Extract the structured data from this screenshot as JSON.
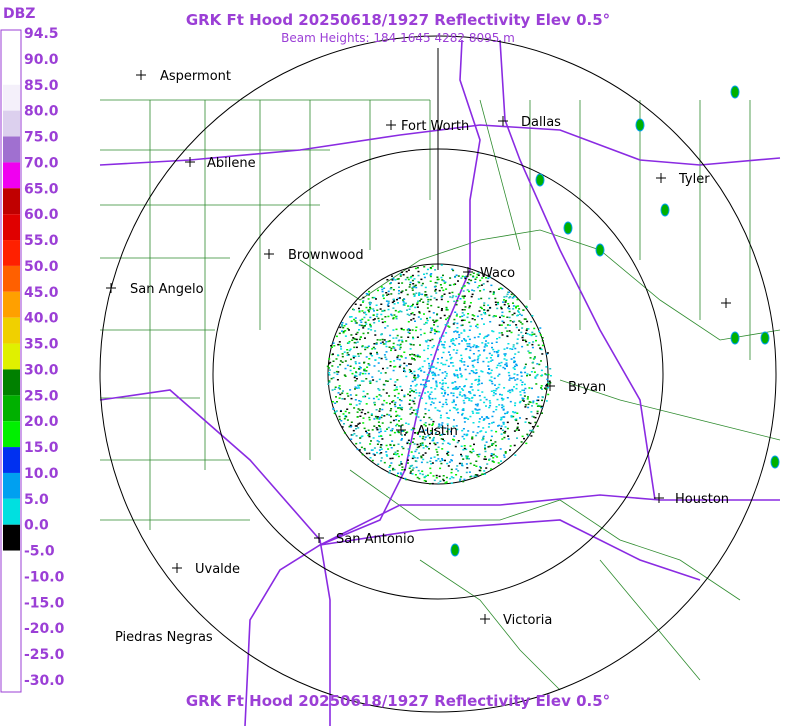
{
  "header": {
    "title": "GRK Ft Hood 20250618/1927 Reflectivity Elev 0.5°",
    "subtitle": "Beam Heights: 184 1645 4282 8095 m",
    "footer": "GRK Ft Hood 20250618/1927 Reflectivity Elev 0.5°"
  },
  "legend": {
    "unit": "DBZ",
    "labels": [
      "94.5",
      "90.0",
      "85.0",
      "80.0",
      "75.0",
      "70.0",
      "65.0",
      "60.0",
      "55.0",
      "50.0",
      "45.0",
      "40.0",
      "35.0",
      "30.0",
      "25.0",
      "20.0",
      "15.0",
      "10.0",
      "5.0",
      "0.0",
      "-5.0",
      "-10.0",
      "-15.0",
      "-20.0",
      "-25.0",
      "-30.0"
    ],
    "colors": [
      "#ffffff",
      "#ffffff",
      "#f4f0fa",
      "#dcd0ee",
      "#a070d0",
      "#f000f0",
      "#c00000",
      "#e00000",
      "#ff2000",
      "#ff6000",
      "#ffa000",
      "#f0d000",
      "#e0f000",
      "#008000",
      "#00b000",
      "#00f000",
      "#0030f0",
      "#00a0f0",
      "#00e0e0",
      "#000000",
      "#ffffff",
      "#ffffff",
      "#ffffff",
      "#ffffff",
      "#ffffff"
    ]
  },
  "cities": [
    "Aspermont",
    "Fort Worth",
    "Dallas",
    "Abilene",
    "Tyler",
    "Brownwood",
    "Waco",
    "San Angelo",
    "Bryan",
    "Austin",
    "Houston",
    "San Antonio",
    "Uvalde",
    "Victoria",
    "Piedras Negras"
  ]
}
